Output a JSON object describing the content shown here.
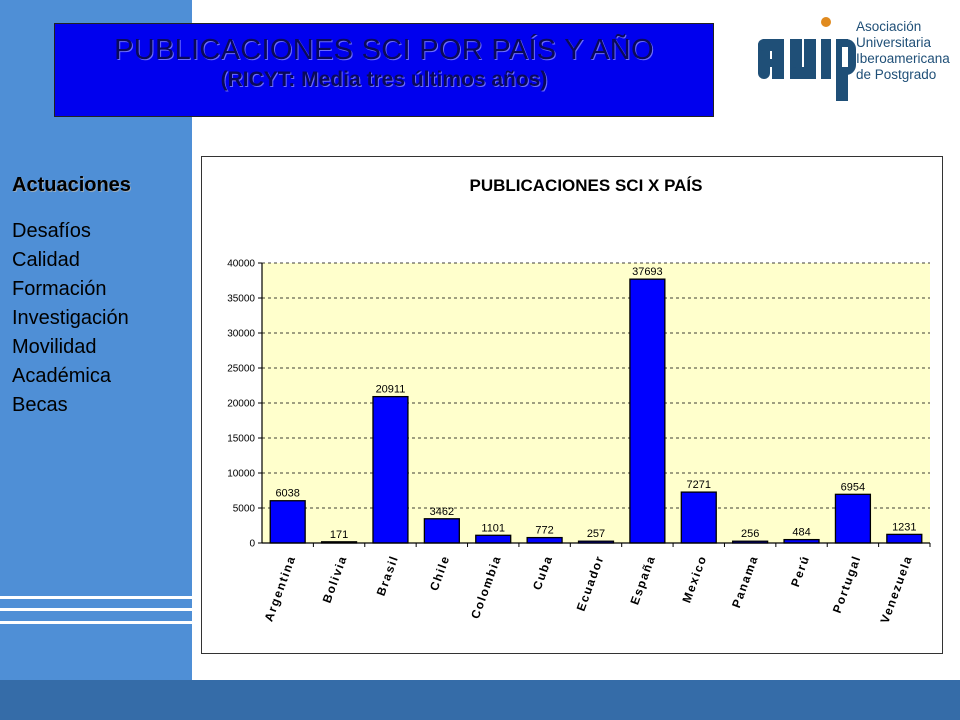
{
  "slide": {
    "title_line1": "PUBLICACIONES SCI POR PAÍS Y AÑO",
    "title_line2": "(RICYT: Media tres últimos años)"
  },
  "logo": {
    "mark": "auip",
    "text_lines": [
      "Asociación",
      "Universitaria",
      "Iberoamericana",
      "de Postgrado"
    ]
  },
  "sidebar": {
    "heading": "Actuaciones",
    "items": [
      {
        "label": "Desafíos"
      },
      {
        "label": "Calidad"
      },
      {
        "label": "Formación"
      },
      {
        "label": "Investigación"
      },
      {
        "label": "Movilidad"
      },
      {
        "label": "Académica"
      },
      {
        "label": "Becas"
      }
    ]
  },
  "colors": {
    "sidebar": "#4f8fd6",
    "bottom_bar": "#356ca8",
    "title_box": "#0000ee",
    "plot_bg": "#ffffcc",
    "bar_fill": "#0000ff",
    "logo": "#1f4f77"
  },
  "chart_data": {
    "type": "bar",
    "title": "PUBLICACIONES SCI X PAÍS",
    "categories": [
      "Argentina",
      "Bolivia",
      "Brasil",
      "Chile",
      "Colombia",
      "Cuba",
      "Ecuador",
      "España",
      "Mexico",
      "Panama",
      "Perú",
      "Portugal",
      "Venezuela"
    ],
    "values": [
      6038,
      171,
      20911,
      3462,
      1101,
      772,
      257,
      37693,
      7271,
      256,
      484,
      6954,
      1231
    ],
    "ylim": [
      0,
      40000
    ],
    "yticks": [
      0,
      5000,
      10000,
      15000,
      20000,
      25000,
      30000,
      35000,
      40000
    ],
    "grid": "horizontal dashed",
    "xlabel": "",
    "ylabel": ""
  }
}
